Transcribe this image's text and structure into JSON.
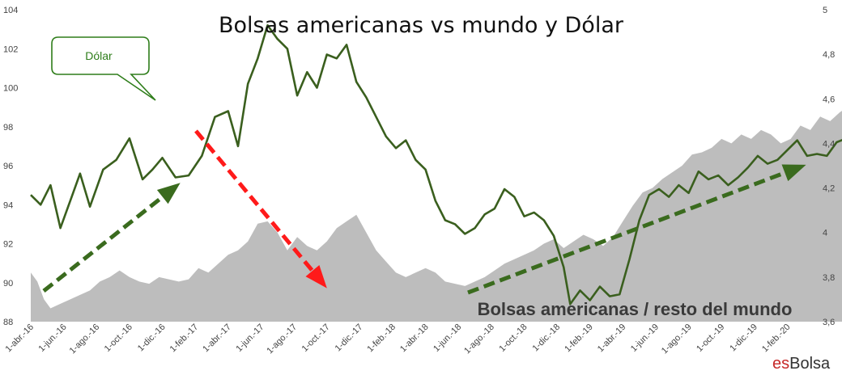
{
  "chart_data": {
    "type": "area+line",
    "title": "Bolsas americanas vs mundo y Dólar",
    "callout_label": "Dólar",
    "area_label": "Bolsas americanas / resto del mundo",
    "brand": {
      "es": "es",
      "name": "Bolsa"
    },
    "y_left": {
      "ticks": [
        "88",
        "90",
        "92",
        "94",
        "96",
        "98",
        "100",
        "102",
        "104"
      ],
      "lim": [
        88,
        104
      ]
    },
    "y_right": {
      "ticks": [
        "3,6",
        "3,8",
        "4",
        "4,2",
        "4,4",
        "4,6",
        "4,8",
        "5"
      ],
      "lim": [
        3.6,
        5.0
      ]
    },
    "x_labels": [
      "1-abr.-16",
      "1-jun.-16",
      "1-ago.-16",
      "1-oct.-16",
      "1-dic.-16",
      "1-feb.-17",
      "1-abr.-17",
      "1-jun.-17",
      "1-ago.-17",
      "1-oct.-17",
      "1-dic.-17",
      "1-feb.-18",
      "1-abr.-18",
      "1-jun.-18",
      "1-ago.-18",
      "1-oct.-18",
      "1-dic.-18",
      "1-feb.-19",
      "1-abr.-19",
      "1-jun.-19",
      "1-ago.-19",
      "1-oct.-19",
      "1-dic.-19",
      "1-feb.-20"
    ],
    "series": [
      {
        "name": "Dólar",
        "axis": "left",
        "color": "#3a5f1e",
        "points": [
          [
            0,
            94.5
          ],
          [
            0.3,
            94.0
          ],
          [
            0.6,
            95.0
          ],
          [
            0.9,
            92.8
          ],
          [
            1.2,
            94.2
          ],
          [
            1.5,
            95.6
          ],
          [
            1.8,
            93.9
          ],
          [
            2.2,
            95.8
          ],
          [
            2.6,
            96.3
          ],
          [
            3.0,
            97.4
          ],
          [
            3.4,
            95.3
          ],
          [
            3.7,
            95.8
          ],
          [
            4.0,
            96.4
          ],
          [
            4.4,
            95.4
          ],
          [
            4.8,
            95.5
          ],
          [
            5.2,
            96.5
          ],
          [
            5.6,
            98.5
          ],
          [
            6.0,
            98.8
          ],
          [
            6.3,
            97.0
          ],
          [
            6.6,
            100.2
          ],
          [
            6.9,
            101.5
          ],
          [
            7.2,
            103.2
          ],
          [
            7.5,
            102.5
          ],
          [
            7.8,
            102.0
          ],
          [
            8.1,
            99.6
          ],
          [
            8.4,
            100.8
          ],
          [
            8.7,
            100.0
          ],
          [
            9.0,
            101.7
          ],
          [
            9.3,
            101.5
          ],
          [
            9.6,
            102.2
          ],
          [
            9.9,
            100.3
          ],
          [
            10.2,
            99.5
          ],
          [
            10.5,
            98.5
          ],
          [
            10.8,
            97.5
          ],
          [
            11.1,
            96.9
          ],
          [
            11.4,
            97.3
          ],
          [
            11.7,
            96.3
          ],
          [
            12.0,
            95.8
          ],
          [
            12.3,
            94.2
          ],
          [
            12.6,
            93.2
          ],
          [
            12.9,
            93.0
          ],
          [
            13.2,
            92.5
          ],
          [
            13.5,
            92.8
          ],
          [
            13.8,
            93.5
          ],
          [
            14.1,
            93.8
          ],
          [
            14.4,
            94.8
          ],
          [
            14.7,
            94.4
          ],
          [
            15.0,
            93.4
          ],
          [
            15.3,
            93.6
          ],
          [
            15.6,
            93.2
          ],
          [
            15.9,
            92.4
          ],
          [
            16.2,
            90.8
          ],
          [
            16.4,
            88.9
          ],
          [
            16.7,
            89.6
          ],
          [
            17.0,
            89.1
          ],
          [
            17.3,
            89.8
          ],
          [
            17.6,
            89.3
          ],
          [
            17.9,
            89.4
          ],
          [
            18.2,
            91.2
          ],
          [
            18.5,
            93.2
          ],
          [
            18.8,
            94.5
          ],
          [
            19.1,
            94.8
          ],
          [
            19.4,
            94.4
          ],
          [
            19.7,
            95.0
          ],
          [
            20.0,
            94.6
          ],
          [
            20.3,
            95.7
          ],
          [
            20.6,
            95.3
          ],
          [
            20.9,
            95.5
          ],
          [
            21.2,
            95.0
          ],
          [
            21.5,
            95.4
          ],
          [
            21.8,
            95.9
          ],
          [
            22.1,
            96.5
          ],
          [
            22.4,
            96.1
          ],
          [
            22.7,
            96.3
          ],
          [
            23.0,
            96.8
          ],
          [
            23.3,
            97.3
          ],
          [
            23.6,
            96.5
          ],
          [
            23.9,
            96.6
          ],
          [
            24.2,
            96.5
          ],
          [
            24.5,
            97.2
          ],
          [
            24.8,
            97.4
          ],
          [
            25.1,
            97.7
          ],
          [
            25.4,
            97.9
          ],
          [
            25.7,
            97.1
          ],
          [
            26.0,
            97.4
          ],
          [
            26.3,
            97.6
          ],
          [
            26.6,
            98.0
          ],
          [
            26.9,
            97.5
          ],
          [
            27.2,
            98.2
          ],
          [
            27.5,
            97.2
          ],
          [
            27.8,
            97.8
          ],
          [
            28.1,
            98.5
          ],
          [
            28.4,
            99.0
          ],
          [
            28.7,
            98.0
          ],
          [
            29.0,
            98.1
          ],
          [
            29.3,
            97.9
          ],
          [
            29.6,
            98.5
          ],
          [
            29.9,
            97.3
          ],
          [
            30.2,
            97.1
          ],
          [
            30.5,
            97.6
          ],
          [
            30.8,
            98.0
          ],
          [
            31.1,
            97.5
          ],
          [
            31.4,
            98.6
          ],
          [
            31.7,
            99.0
          ]
        ]
      },
      {
        "name": "Bolsas americanas / resto del mundo",
        "axis": "right",
        "color": "#bdbdbd",
        "points": [
          [
            0,
            3.82
          ],
          [
            0.2,
            3.78
          ],
          [
            0.4,
            3.7
          ],
          [
            0.6,
            3.66
          ],
          [
            0.9,
            3.68
          ],
          [
            1.2,
            3.7
          ],
          [
            1.5,
            3.72
          ],
          [
            1.8,
            3.74
          ],
          [
            2.1,
            3.78
          ],
          [
            2.4,
            3.8
          ],
          [
            2.7,
            3.83
          ],
          [
            3.0,
            3.8
          ],
          [
            3.3,
            3.78
          ],
          [
            3.6,
            3.77
          ],
          [
            3.9,
            3.8
          ],
          [
            4.2,
            3.79
          ],
          [
            4.5,
            3.78
          ],
          [
            4.8,
            3.79
          ],
          [
            5.1,
            3.84
          ],
          [
            5.4,
            3.82
          ],
          [
            5.7,
            3.86
          ],
          [
            6.0,
            3.9
          ],
          [
            6.3,
            3.92
          ],
          [
            6.6,
            3.96
          ],
          [
            6.9,
            4.04
          ],
          [
            7.2,
            4.05
          ],
          [
            7.5,
            4.0
          ],
          [
            7.8,
            3.92
          ],
          [
            8.1,
            3.98
          ],
          [
            8.4,
            3.94
          ],
          [
            8.7,
            3.92
          ],
          [
            9.0,
            3.96
          ],
          [
            9.3,
            4.02
          ],
          [
            9.6,
            4.05
          ],
          [
            9.9,
            4.08
          ],
          [
            10.2,
            4.0
          ],
          [
            10.5,
            3.92
          ],
          [
            10.8,
            3.87
          ],
          [
            11.1,
            3.82
          ],
          [
            11.4,
            3.8
          ],
          [
            11.7,
            3.82
          ],
          [
            12.0,
            3.84
          ],
          [
            12.3,
            3.82
          ],
          [
            12.6,
            3.78
          ],
          [
            12.9,
            3.77
          ],
          [
            13.2,
            3.76
          ],
          [
            13.5,
            3.78
          ],
          [
            13.8,
            3.8
          ],
          [
            14.1,
            3.83
          ],
          [
            14.4,
            3.86
          ],
          [
            14.7,
            3.88
          ],
          [
            15.0,
            3.9
          ],
          [
            15.3,
            3.92
          ],
          [
            15.6,
            3.95
          ],
          [
            15.9,
            3.97
          ],
          [
            16.2,
            3.93
          ],
          [
            16.5,
            3.96
          ],
          [
            16.8,
            3.99
          ],
          [
            17.1,
            3.97
          ],
          [
            17.4,
            3.94
          ],
          [
            17.7,
            3.98
          ],
          [
            18.0,
            4.05
          ],
          [
            18.3,
            4.12
          ],
          [
            18.6,
            4.18
          ],
          [
            18.9,
            4.2
          ],
          [
            19.2,
            4.24
          ],
          [
            19.5,
            4.27
          ],
          [
            19.8,
            4.3
          ],
          [
            20.1,
            4.35
          ],
          [
            20.4,
            4.36
          ],
          [
            20.7,
            4.38
          ],
          [
            21.0,
            4.42
          ],
          [
            21.3,
            4.4
          ],
          [
            21.6,
            4.44
          ],
          [
            21.9,
            4.42
          ],
          [
            22.2,
            4.46
          ],
          [
            22.5,
            4.44
          ],
          [
            22.8,
            4.4
          ],
          [
            23.1,
            4.42
          ],
          [
            23.4,
            4.48
          ],
          [
            23.7,
            4.46
          ],
          [
            24.0,
            4.52
          ],
          [
            24.3,
            4.5
          ],
          [
            24.6,
            4.54
          ],
          [
            24.9,
            4.57
          ],
          [
            25.2,
            4.55
          ],
          [
            25.5,
            4.58
          ],
          [
            25.8,
            4.62
          ],
          [
            26.1,
            4.58
          ],
          [
            26.4,
            4.64
          ],
          [
            26.7,
            4.6
          ],
          [
            27.0,
            4.62
          ],
          [
            27.3,
            4.66
          ],
          [
            27.6,
            4.6
          ],
          [
            27.9,
            4.62
          ],
          [
            28.2,
            4.68
          ],
          [
            28.5,
            4.63
          ],
          [
            28.8,
            4.6
          ],
          [
            29.1,
            4.56
          ],
          [
            29.4,
            4.62
          ],
          [
            29.7,
            4.66
          ],
          [
            30.0,
            4.72
          ],
          [
            30.3,
            4.68
          ],
          [
            30.6,
            4.76
          ],
          [
            30.9,
            4.78
          ],
          [
            31.2,
            4.82
          ],
          [
            31.5,
            4.85
          ],
          [
            31.7,
            4.8
          ]
        ]
      }
    ],
    "arrows": [
      {
        "name": "green-arrow-left",
        "color": "#3a6b1e"
      },
      {
        "name": "red-arrow",
        "color": "#ff1a1a"
      },
      {
        "name": "green-arrow-right",
        "color": "#3a6b1e"
      }
    ]
  }
}
